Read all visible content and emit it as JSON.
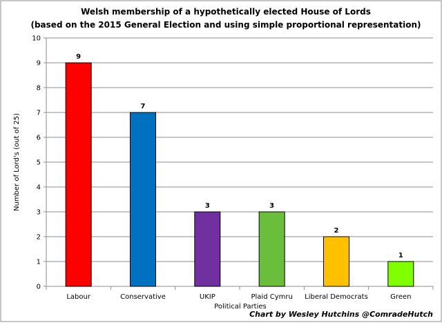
{
  "chart_data": {
    "type": "bar",
    "title": "Welsh membership of a hypothetically elected House of Lords",
    "subtitle": "(based on the 2015 General Election and using simple proportional representation)",
    "xlabel": "Political Parties",
    "ylabel": "Number of Lord's (out of 25)",
    "categories": [
      "Labour",
      "Conservative",
      "UKIP",
      "Plaid Cymru",
      "Liberal Democrats",
      "Green"
    ],
    "values": [
      9,
      7,
      3,
      3,
      2,
      1
    ],
    "colors": [
      "#ff0000",
      "#0070c0",
      "#7030a0",
      "#6bbd3c",
      "#ffc000",
      "#80ff00"
    ],
    "ylim": [
      0,
      10
    ],
    "yticks": [
      0,
      1,
      2,
      3,
      4,
      5,
      6,
      7,
      8,
      9,
      10
    ],
    "grid": true,
    "legend": "none",
    "credit": "Chart by Wesley Hutchins @ComradeHutch"
  }
}
